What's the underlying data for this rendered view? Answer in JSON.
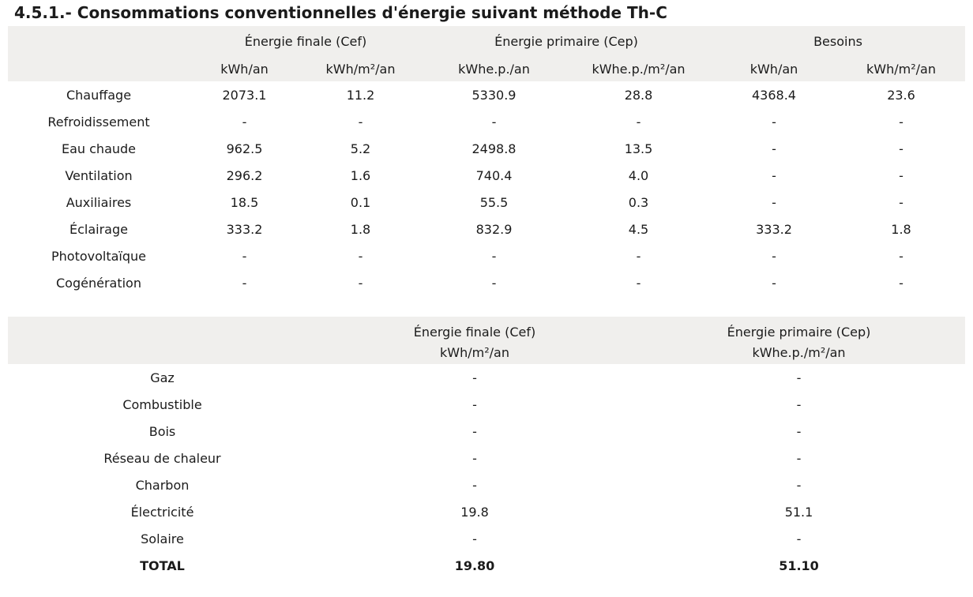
{
  "page": {
    "title": "4.5.1.- Consommations conventionnelles d'énergie suivant méthode Th-C"
  },
  "colors": {
    "header_band_bg": "#f0efed",
    "text": "#1b1b1b",
    "background": "#ffffff"
  },
  "table1": {
    "col_groups": [
      {
        "label": "Énergie finale (Cef)"
      },
      {
        "label": "Énergie primaire (Cep)"
      },
      {
        "label": "Besoins"
      }
    ],
    "unit_headers": [
      "kWh/an",
      "kWh/m²/an",
      "kWhe.p./an",
      "kWhe.p./m²/an",
      "kWh/an",
      "kWh/m²/an"
    ],
    "rows": [
      {
        "label": "Chauffage",
        "values": [
          "2073.1",
          "11.2",
          "5330.9",
          "28.8",
          "4368.4",
          "23.6"
        ]
      },
      {
        "label": "Refroidissement",
        "values": [
          "-",
          "-",
          "-",
          "-",
          "-",
          "-"
        ]
      },
      {
        "label": "Eau chaude",
        "values": [
          "962.5",
          "5.2",
          "2498.8",
          "13.5",
          "-",
          "-"
        ]
      },
      {
        "label": "Ventilation",
        "values": [
          "296.2",
          "1.6",
          "740.4",
          "4.0",
          "-",
          "-"
        ]
      },
      {
        "label": "Auxiliaires",
        "values": [
          "18.5",
          "0.1",
          "55.5",
          "0.3",
          "-",
          "-"
        ]
      },
      {
        "label": "Éclairage",
        "values": [
          "333.2",
          "1.8",
          "832.9",
          "4.5",
          "333.2",
          "1.8"
        ]
      },
      {
        "label": "Photovoltaïque",
        "values": [
          "-",
          "-",
          "-",
          "-",
          "-",
          "-"
        ]
      },
      {
        "label": "Cogénération",
        "values": [
          "-",
          "-",
          "-",
          "-",
          "-",
          "-"
        ]
      }
    ]
  },
  "table2": {
    "headers": [
      {
        "label": "Énergie finale (Cef)",
        "unit": "kWh/m²/an"
      },
      {
        "label": "Énergie primaire (Cep)",
        "unit": "kWhe.p./m²/an"
      }
    ],
    "rows": [
      {
        "label": "Gaz",
        "values": [
          "-",
          "-"
        ],
        "bold": false
      },
      {
        "label": "Combustible",
        "values": [
          "-",
          "-"
        ],
        "bold": false
      },
      {
        "label": "Bois",
        "values": [
          "-",
          "-"
        ],
        "bold": false
      },
      {
        "label": "Réseau de chaleur",
        "values": [
          "-",
          "-"
        ],
        "bold": false
      },
      {
        "label": "Charbon",
        "values": [
          "-",
          "-"
        ],
        "bold": false
      },
      {
        "label": "Électricité",
        "values": [
          "19.8",
          "51.1"
        ],
        "bold": false
      },
      {
        "label": "Solaire",
        "values": [
          "-",
          "-"
        ],
        "bold": false
      },
      {
        "label": "TOTAL",
        "values": [
          "19.80",
          "51.10"
        ],
        "bold": true
      }
    ]
  }
}
